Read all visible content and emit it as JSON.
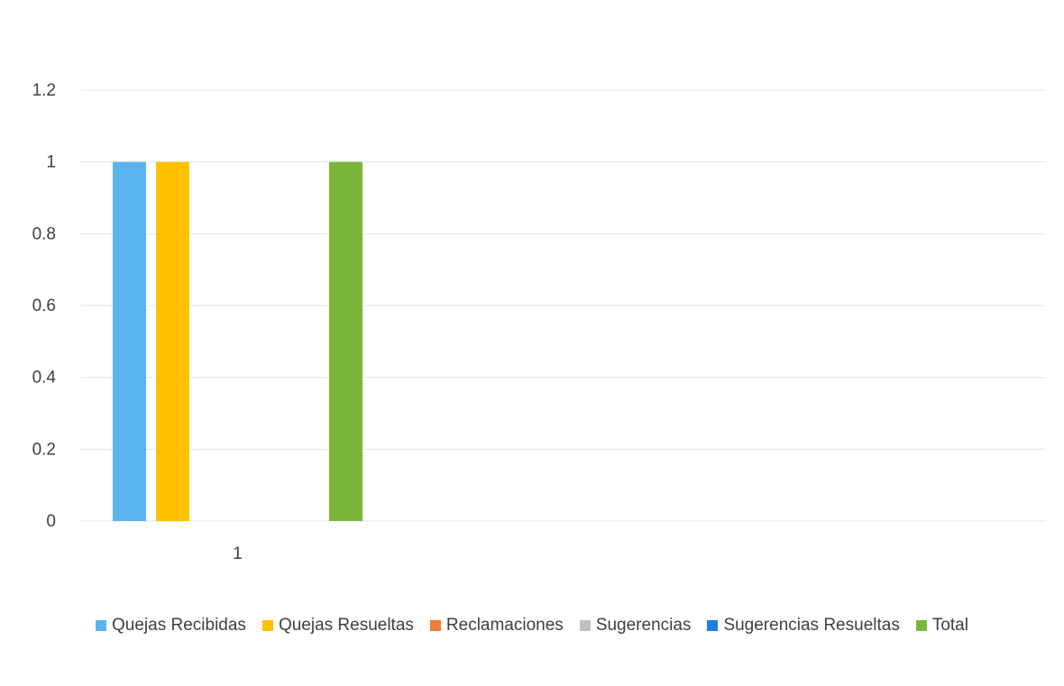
{
  "chart_data": {
    "type": "bar",
    "categories": [
      "1"
    ],
    "series": [
      {
        "name": "Quejas Recibidas",
        "values": [
          1
        ],
        "color": "#5BB4EE"
      },
      {
        "name": "Quejas Resueltas",
        "values": [
          1
        ],
        "color": "#FFC000"
      },
      {
        "name": "Reclamaciones",
        "values": [
          0
        ],
        "color": "#ED7D31"
      },
      {
        "name": "Sugerencias",
        "values": [
          0
        ],
        "color": "#BFC0C4"
      },
      {
        "name": "Sugerencias Resueltas",
        "values": [
          0
        ],
        "color": "#1E7FE0"
      },
      {
        "name": "Total",
        "values": [
          1
        ],
        "color": "#7AB63A"
      }
    ],
    "yticks": [
      "0",
      "0.2",
      "0.4",
      "0.6",
      "0.8",
      "1",
      "1.2"
    ],
    "ylim": [
      0,
      1.2
    ],
    "grid": true,
    "legend_position": "bottom",
    "title": "",
    "xlabel": "",
    "ylabel": ""
  }
}
